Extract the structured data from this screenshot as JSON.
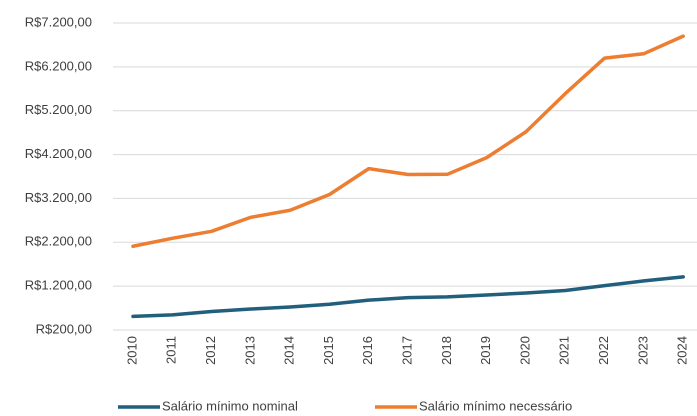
{
  "chart_data": {
    "type": "line",
    "categories": [
      "2010",
      "2011",
      "2012",
      "2013",
      "2014",
      "2015",
      "2016",
      "2017",
      "2018",
      "2019",
      "2020",
      "2021",
      "2022",
      "2023",
      "2024"
    ],
    "series": [
      {
        "name": "Salário mínimo nominal",
        "color": "#215f7d",
        "values": [
          510,
          545,
          622,
          678,
          724,
          788,
          880,
          937,
          954,
          998,
          1045,
          1100,
          1212,
          1320,
          1412
        ]
      },
      {
        "name": "Salário mínimo necessário",
        "color": "#ed7d31",
        "values": [
          2110,
          2290,
          2450,
          2770,
          2930,
          3290,
          3880,
          3745,
          3750,
          4130,
          4720,
          5590,
          6400,
          6500,
          6900
        ]
      }
    ],
    "ylim": [
      200,
      7200
    ],
    "yticks": [
      {
        "value": 200,
        "label": "R$200,00"
      },
      {
        "value": 1200,
        "label": "R$1.200,00"
      },
      {
        "value": 2200,
        "label": "R$2.200,00"
      },
      {
        "value": 3200,
        "label": "R$3.200,00"
      },
      {
        "value": 4200,
        "label": "R$4.200,00"
      },
      {
        "value": 5200,
        "label": "R$5.200,00"
      },
      {
        "value": 6200,
        "label": "R$6.200,00"
      },
      {
        "value": 7200,
        "label": "R$7.200,00"
      }
    ],
    "grid": true,
    "legend": "bottom"
  }
}
